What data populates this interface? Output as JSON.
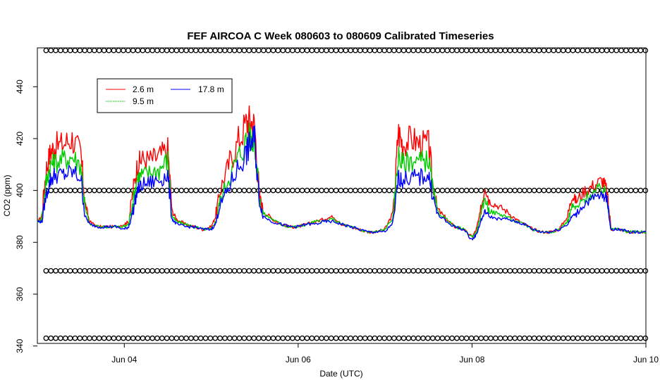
{
  "chart_data": {
    "type": "line",
    "title": "FEF AIRCOA C  Week 080603 to 080609  Calibrated Timeseries",
    "xlabel": "Date (UTC)",
    "ylabel": "CO2 (ppm)",
    "xlim": [
      3.0,
      10.0
    ],
    "ylim": [
      341,
      455
    ],
    "x_ticks": [
      {
        "value": 4,
        "label": "Jun 04"
      },
      {
        "value": 6,
        "label": "Jun 06"
      },
      {
        "value": 8,
        "label": "Jun 08"
      },
      {
        "value": 10,
        "label": "Jun 10"
      }
    ],
    "y_ticks": [
      340,
      360,
      380,
      400,
      420,
      440
    ],
    "x_unit_note": "x values are day-of-month in June 2008 (fractional days)",
    "legend": {
      "placement": "top-left",
      "entries": [
        {
          "label": "2.6 m",
          "color": "#ff0000"
        },
        {
          "label": "9.5 m",
          "color": "#00cc00"
        },
        {
          "label": "17.8 m",
          "color": "#0000ff"
        }
      ]
    },
    "series": [
      {
        "name": "2.6 m",
        "color": "#ff0000",
        "x": [
          3.0,
          3.05,
          3.1,
          3.15,
          3.2,
          3.3,
          3.4,
          3.5,
          3.55,
          3.6,
          3.7,
          3.8,
          3.9,
          4.0,
          4.05,
          4.1,
          4.15,
          4.2,
          4.3,
          4.4,
          4.5,
          4.55,
          4.6,
          4.7,
          4.8,
          4.9,
          5.0,
          5.05,
          5.1,
          5.2,
          5.3,
          5.4,
          5.45,
          5.5,
          5.55,
          5.6,
          5.7,
          5.8,
          5.9,
          6.0,
          6.1,
          6.2,
          6.3,
          6.4,
          6.5,
          6.6,
          6.7,
          6.8,
          6.9,
          7.0,
          7.1,
          7.15,
          7.2,
          7.3,
          7.4,
          7.5,
          7.55,
          7.6,
          7.7,
          7.8,
          7.9,
          8.0,
          8.05,
          8.1,
          8.15,
          8.2,
          8.3,
          8.4,
          8.5,
          8.6,
          8.7,
          8.8,
          8.9,
          9.0,
          9.1,
          9.15,
          9.2,
          9.3,
          9.4,
          9.5,
          9.55,
          9.6,
          9.7,
          9.8,
          9.9,
          10.0
        ],
        "y": [
          388,
          390,
          408,
          415,
          417,
          418,
          420,
          414,
          395,
          388,
          386,
          386,
          386,
          387,
          388,
          400,
          410,
          412,
          412,
          413,
          416,
          392,
          389,
          387,
          386,
          385,
          386,
          390,
          400,
          410,
          418,
          426,
          427,
          425,
          399,
          392,
          389,
          387,
          386,
          386,
          387,
          388,
          389,
          390,
          387,
          386,
          385,
          384,
          384,
          385,
          392,
          423,
          418,
          420,
          418,
          418,
          402,
          393,
          389,
          386,
          385,
          382,
          385,
          392,
          402,
          396,
          394,
          392,
          389,
          387,
          385,
          384,
          384,
          385,
          390,
          398,
          396,
          400,
          402,
          404,
          400,
          385,
          385,
          384,
          384,
          384
        ]
      },
      {
        "name": "9.5 m",
        "color": "#00cc00",
        "x": [
          3.0,
          3.05,
          3.1,
          3.15,
          3.2,
          3.3,
          3.4,
          3.5,
          3.55,
          3.6,
          3.7,
          3.8,
          3.9,
          4.0,
          4.05,
          4.1,
          4.15,
          4.2,
          4.3,
          4.4,
          4.5,
          4.55,
          4.6,
          4.7,
          4.8,
          4.9,
          5.0,
          5.05,
          5.1,
          5.2,
          5.3,
          5.4,
          5.45,
          5.5,
          5.55,
          5.6,
          5.7,
          5.8,
          5.9,
          6.0,
          6.1,
          6.2,
          6.3,
          6.4,
          6.5,
          6.6,
          6.7,
          6.8,
          6.9,
          7.0,
          7.1,
          7.15,
          7.2,
          7.3,
          7.4,
          7.5,
          7.55,
          7.6,
          7.7,
          7.8,
          7.9,
          8.0,
          8.05,
          8.1,
          8.15,
          8.2,
          8.3,
          8.4,
          8.5,
          8.6,
          8.7,
          8.8,
          8.9,
          9.0,
          9.1,
          9.15,
          9.2,
          9.3,
          9.4,
          9.5,
          9.55,
          9.6,
          9.7,
          9.8,
          9.9,
          10.0
        ],
        "y": [
          388,
          389,
          403,
          410,
          411,
          412,
          413,
          410,
          393,
          387,
          386,
          386,
          386,
          386,
          387,
          396,
          405,
          406,
          407,
          408,
          412,
          390,
          388,
          387,
          386,
          385,
          385,
          388,
          396,
          405,
          412,
          419,
          421,
          420,
          397,
          391,
          389,
          387,
          386,
          386,
          387,
          388,
          388,
          389,
          387,
          386,
          385,
          384,
          384,
          385,
          390,
          414,
          410,
          412,
          411,
          412,
          400,
          392,
          389,
          386,
          385,
          382,
          384,
          390,
          397,
          392,
          391,
          390,
          388,
          387,
          385,
          384,
          384,
          385,
          388,
          394,
          393,
          397,
          399,
          401,
          398,
          385,
          385,
          384,
          384,
          384
        ]
      },
      {
        "name": "17.8 m",
        "color": "#0000ff",
        "x": [
          3.0,
          3.05,
          3.1,
          3.15,
          3.2,
          3.3,
          3.4,
          3.5,
          3.55,
          3.6,
          3.7,
          3.8,
          3.9,
          4.0,
          4.05,
          4.1,
          4.15,
          4.2,
          4.3,
          4.4,
          4.5,
          4.55,
          4.6,
          4.7,
          4.8,
          4.9,
          5.0,
          5.05,
          5.1,
          5.2,
          5.3,
          5.4,
          5.45,
          5.5,
          5.55,
          5.6,
          5.7,
          5.8,
          5.9,
          6.0,
          6.1,
          6.2,
          6.3,
          6.4,
          6.5,
          6.6,
          6.7,
          6.8,
          6.9,
          7.0,
          7.1,
          7.15,
          7.2,
          7.3,
          7.4,
          7.5,
          7.55,
          7.6,
          7.7,
          7.8,
          7.9,
          8.0,
          8.05,
          8.1,
          8.15,
          8.2,
          8.3,
          8.4,
          8.5,
          8.6,
          8.7,
          8.8,
          8.9,
          9.0,
          9.1,
          9.15,
          9.2,
          9.3,
          9.4,
          9.5,
          9.55,
          9.6,
          9.7,
          9.8,
          9.9,
          10.0
        ],
        "y": [
          388,
          388,
          398,
          404,
          406,
          406,
          407,
          405,
          390,
          387,
          386,
          386,
          386,
          385,
          386,
          392,
          400,
          402,
          403,
          404,
          406,
          389,
          387,
          386,
          386,
          385,
          385,
          387,
          394,
          401,
          408,
          414,
          418,
          420,
          396,
          390,
          388,
          387,
          386,
          386,
          387,
          387,
          388,
          388,
          387,
          386,
          385,
          384,
          384,
          384,
          388,
          405,
          404,
          405,
          405,
          406,
          398,
          391,
          388,
          386,
          385,
          381,
          383,
          388,
          392,
          390,
          389,
          389,
          388,
          387,
          385,
          384,
          384,
          385,
          387,
          390,
          391,
          395,
          397,
          398,
          397,
          385,
          385,
          384,
          384,
          384
        ]
      },
      {
        "name": "",
        "color": "#000000",
        "marker": "open-circle",
        "note": "reference / flag points drawn as open circles at fixed levels",
        "levels": [
          454,
          400,
          369,
          343
        ],
        "x_start": 3.1,
        "x_end": 10.0,
        "step": 0.0556
      }
    ]
  }
}
